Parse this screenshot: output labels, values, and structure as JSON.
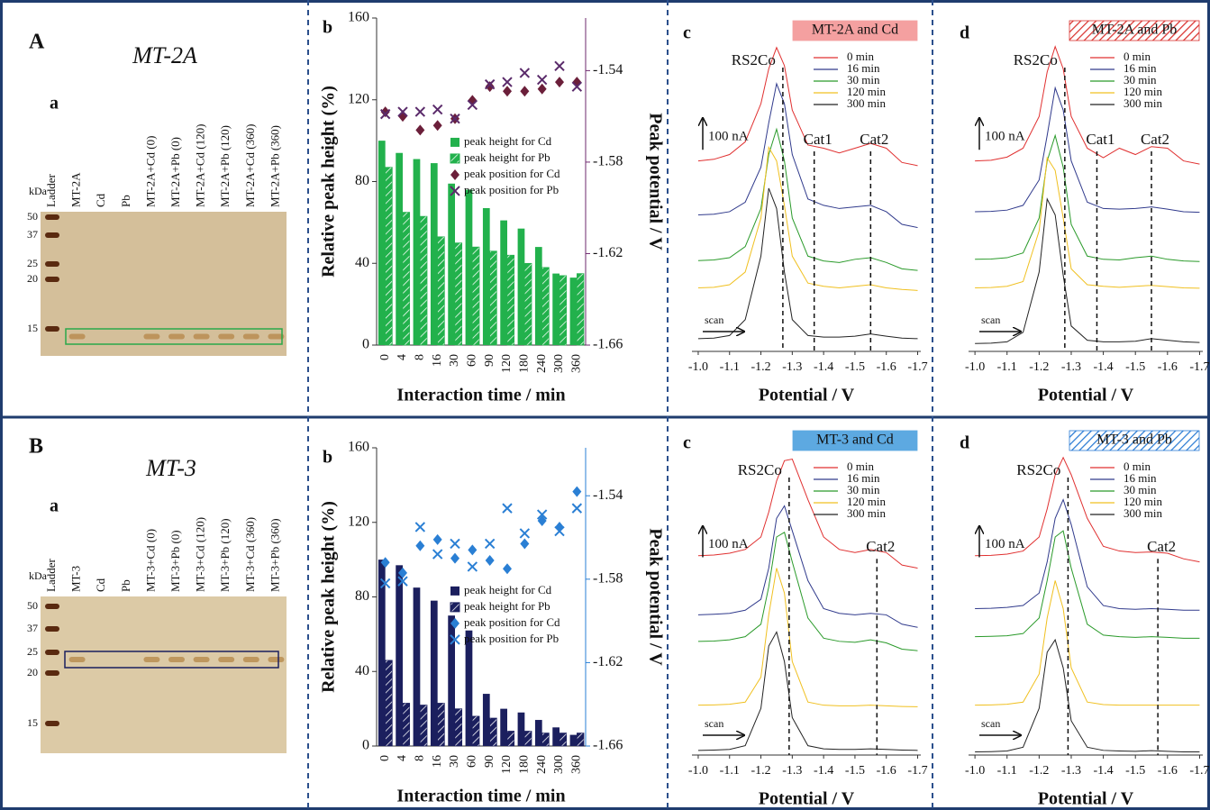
{
  "rows": [
    {
      "label": "A",
      "gel": {
        "title": "MT-2A",
        "label": "a",
        "unit": "kDa",
        "lanes": [
          "Ladder",
          "MT-2A",
          "Cd",
          "Pb",
          "MT-2A+Cd (0)",
          "MT-2A+Pb (0)",
          "MT-2A+Cd (120)",
          "MT-2A+Pb (120)",
          "MT-2A+Cd (360)",
          "MT-2A+Pb (360)"
        ],
        "markers": [
          50,
          37,
          25,
          20,
          15
        ]
      }
    },
    {
      "label": "B",
      "gel": {
        "title": "MT-3",
        "label": "a",
        "unit": "kDa",
        "lanes": [
          "Ladder",
          "MT-3",
          "Cd",
          "Pb",
          "MT-3+Cd (0)",
          "MT-3+Pb (0)",
          "MT-3+Cd (120)",
          "MT-3+Pb (120)",
          "MT-3+Cd (360)",
          "MT-3+Pb (360)"
        ],
        "markers": [
          50,
          37,
          25,
          20,
          15
        ]
      }
    }
  ],
  "chart_data": [
    {
      "type": "bar",
      "label": "b",
      "categories": [
        "0",
        "4",
        "8",
        "16",
        "30",
        "60",
        "90",
        "120",
        "180",
        "240",
        "300",
        "360"
      ],
      "series": [
        {
          "name": "peak height for Cd",
          "color": "#22b14c",
          "values": [
            100,
            94,
            91,
            89,
            79,
            76,
            67,
            61,
            57,
            48,
            35,
            33
          ]
        },
        {
          "name": "peak height for Pb",
          "color": "#22b14c",
          "hatch": true,
          "values": [
            87,
            65,
            63,
            53,
            50,
            48,
            46,
            44,
            40,
            38,
            34,
            35
          ]
        },
        {
          "name": "peak position for Cd",
          "color": "#6b1f3a",
          "marker": "diamond",
          "axis": "y2",
          "values": [
            -1.558,
            -1.56,
            -1.566,
            -1.564,
            -1.561,
            -1.553,
            -1.547,
            -1.549,
            -1.549,
            -1.548,
            -1.545,
            -1.545
          ]
        },
        {
          "name": "peak position for Pb",
          "color": "#5a2a6a",
          "marker": "x",
          "axis": "y2",
          "values": [
            -1.559,
            -1.558,
            -1.558,
            -1.557,
            -1.561,
            -1.555,
            -1.546,
            -1.545,
            -1.541,
            -1.544,
            -1.538,
            -1.547
          ]
        }
      ],
      "ylim": [
        0,
        160
      ],
      "yticks": [
        0,
        40,
        80,
        120,
        160
      ],
      "y2lim": [
        -1.66,
        -1.517
      ],
      "y2ticks": [
        -1.66,
        -1.62,
        -1.58,
        -1.54
      ],
      "y2color": "#6e2a6e",
      "y_label": "Relative  peak height (%)",
      "y2_label": "Peak potential / V",
      "x_label": "Interaction time / min",
      "legend": "center right"
    },
    {
      "type": "line",
      "label": "c",
      "box_title": "MT-2A and Cd",
      "box_color": "#f4a0a0",
      "x": [
        -1.0,
        -1.05,
        -1.1,
        -1.15,
        -1.2,
        -1.225,
        -1.25,
        -1.275,
        -1.3,
        -1.35,
        -1.4,
        -1.45,
        -1.5,
        -1.55,
        -1.6,
        -1.65,
        -1.7
      ],
      "series": [
        {
          "name": "0 min",
          "color": "#e03030",
          "values": [
            600,
            605,
            620,
            660,
            780,
            890,
            957,
            900,
            760,
            650,
            640,
            625,
            640,
            655,
            640,
            595,
            585
          ]
        },
        {
          "name": "16 min",
          "color": "#303a8c",
          "values": [
            430,
            432,
            440,
            470,
            580,
            720,
            843,
            780,
            620,
            480,
            460,
            450,
            455,
            460,
            440,
            400,
            390
          ]
        },
        {
          "name": "30 min",
          "color": "#2a9a2a",
          "values": [
            286,
            288,
            295,
            330,
            450,
            620,
            700,
            600,
            420,
            300,
            285,
            280,
            290,
            295,
            280,
            260,
            255
          ]
        },
        {
          "name": "120 min",
          "color": "#f0c020",
          "values": [
            200,
            202,
            210,
            250,
            420,
            643,
            600,
            460,
            300,
            215,
            205,
            200,
            205,
            210,
            200,
            195,
            192
          ]
        },
        {
          "name": "300 min",
          "color": "#222222",
          "values": [
            40,
            42,
            50,
            100,
            300,
            514,
            450,
            250,
            100,
            50,
            45,
            45,
            48,
            55,
            48,
            42,
            40
          ]
        }
      ],
      "xlim": [
        -0.98,
        -1.71
      ],
      "ylim": [
        0,
        1050
      ],
      "xticks": [
        {
          "value": -1,
          "label": "-1.0"
        },
        -1.1,
        -1.2,
        -1.3,
        -1.4,
        -1.5,
        -1.6,
        -1.7
      ],
      "x_label": "Potential / V",
      "peak": {
        "label": "RS2Co",
        "x": -1.27
      },
      "cats": [
        {
          "label": "Cat1",
          "x": -1.37
        },
        {
          "label": "Cat2",
          "x": -1.55
        }
      ],
      "scale_bar": {
        "label": "100 nA",
        "value": 100
      },
      "scan": "scan"
    },
    {
      "type": "line",
      "label": "d",
      "box_title": "MT-2A and Pb",
      "box_color": "#d9322f",
      "box_hatch": true,
      "x": [
        -1.0,
        -1.05,
        -1.1,
        -1.15,
        -1.2,
        -1.225,
        -1.25,
        -1.275,
        -1.3,
        -1.35,
        -1.4,
        -1.45,
        -1.5,
        -1.55,
        -1.6,
        -1.65,
        -1.7
      ],
      "series": [
        {
          "name": "0 min",
          "color": "#e03030",
          "values": [
            600,
            602,
            612,
            640,
            740,
            880,
            960,
            890,
            740,
            640,
            610,
            640,
            620,
            645,
            640,
            600,
            590
          ]
        },
        {
          "name": "16 min",
          "color": "#303a8c",
          "values": [
            440,
            441,
            445,
            460,
            540,
            680,
            830,
            760,
            600,
            470,
            450,
            448,
            450,
            455,
            448,
            440,
            438
          ]
        },
        {
          "name": "30 min",
          "color": "#2a9a2a",
          "values": [
            290,
            291,
            295,
            310,
            420,
            600,
            680,
            580,
            400,
            300,
            290,
            288,
            295,
            300,
            290,
            285,
            283
          ]
        },
        {
          "name": "120 min",
          "color": "#f0c020",
          "values": [
            200,
            201,
            205,
            220,
            380,
            610,
            570,
            420,
            260,
            210,
            205,
            202,
            205,
            208,
            204,
            200,
            199
          ]
        },
        {
          "name": "300 min",
          "color": "#222222",
          "values": [
            25,
            26,
            30,
            60,
            250,
            480,
            430,
            240,
            80,
            35,
            30,
            30,
            32,
            40,
            35,
            30,
            28
          ]
        }
      ],
      "xlim": [
        -0.98,
        -1.71
      ],
      "ylim": [
        0,
        1050
      ],
      "xticks": [
        {
          "value": -1,
          "label": "-1.0"
        },
        -1.1,
        -1.2,
        -1.3,
        -1.4,
        -1.5,
        -1.6,
        -1.7
      ],
      "x_label": "Potential / V",
      "peak": {
        "label": "RS2Co",
        "x": -1.28
      },
      "cats": [
        {
          "label": "Cat1",
          "x": -1.38
        },
        {
          "label": "Cat2",
          "x": -1.55
        }
      ],
      "scale_bar": {
        "label": "100 nA",
        "value": 100
      },
      "scan": "scan"
    },
    {
      "type": "bar",
      "label": "b",
      "categories": [
        "0",
        "4",
        "8",
        "16",
        "30",
        "60",
        "90",
        "120",
        "180",
        "240",
        "300",
        "360"
      ],
      "series": [
        {
          "name": "peak height for Cd",
          "color": "#1b1f5e",
          "values": [
            100,
            97,
            85,
            78,
            70,
            62,
            28,
            20,
            18,
            14,
            10,
            6
          ]
        },
        {
          "name": "peak height for Pb",
          "color": "#1b1f5e",
          "hatch": true,
          "values": [
            46,
            23,
            22,
            23,
            20,
            16,
            15,
            8,
            8,
            7,
            7,
            7
          ]
        },
        {
          "name": "peak position for Cd",
          "color": "#2a7fd4",
          "marker": "diamond",
          "axis": "y2",
          "values": [
            -1.572,
            -1.577,
            -1.564,
            -1.561,
            -1.57,
            -1.566,
            -1.571,
            -1.575,
            -1.563,
            -1.552,
            -1.555,
            -1.538
          ]
        },
        {
          "name": "peak position for Pb",
          "color": "#2a7fd4",
          "marker": "x",
          "axis": "y2",
          "values": [
            -1.582,
            -1.581,
            -1.555,
            -1.568,
            -1.563,
            -1.574,
            -1.563,
            -1.546,
            -1.558,
            -1.549,
            -1.557,
            -1.546
          ]
        }
      ],
      "ylim": [
        0,
        160
      ],
      "yticks": [
        0,
        40,
        80,
        120,
        160
      ],
      "y2lim": [
        -1.66,
        -1.517
      ],
      "y2ticks": [
        -1.66,
        -1.62,
        -1.58,
        -1.54
      ],
      "y2color": "#2a7fd4",
      "y_label": "Relative  peak height (%)",
      "y2_label": "Peak potential / V",
      "x_label": "Interaction time / min",
      "legend": "lower right"
    },
    {
      "type": "line",
      "label": "c",
      "box_title": "MT-3 and Cd",
      "box_color": "#5da9e1",
      "x": [
        -1.0,
        -1.05,
        -1.1,
        -1.15,
        -1.2,
        -1.225,
        -1.25,
        -1.275,
        -1.3,
        -1.35,
        -1.4,
        -1.45,
        -1.5,
        -1.55,
        -1.6,
        -1.65,
        -1.7
      ],
      "series": [
        {
          "name": "0 min",
          "color": "#e03030",
          "values": [
            640,
            642,
            648,
            660,
            700,
            780,
            880,
            945,
            950,
            820,
            700,
            660,
            650,
            660,
            650,
            610,
            600
          ]
        },
        {
          "name": "16 min",
          "color": "#303a8c",
          "values": [
            450,
            452,
            455,
            465,
            500,
            600,
            760,
            800,
            720,
            560,
            470,
            455,
            450,
            455,
            450,
            420,
            410
          ]
        },
        {
          "name": "30 min",
          "color": "#2a9a2a",
          "values": [
            365,
            366,
            370,
            380,
            420,
            540,
            700,
            715,
            620,
            440,
            375,
            365,
            362,
            370,
            360,
            340,
            335
          ]
        },
        {
          "name": "120 min",
          "color": "#f0c020",
          "values": [
            160,
            161,
            163,
            170,
            250,
            450,
            600,
            520,
            300,
            170,
            160,
            158,
            158,
            160,
            158,
            156,
            155
          ]
        },
        {
          "name": "300 min",
          "color": "#222222",
          "values": [
            15,
            16,
            18,
            30,
            150,
            350,
            395,
            300,
            120,
            30,
            20,
            18,
            18,
            20,
            18,
            16,
            15
          ]
        }
      ],
      "xlim": [
        -0.98,
        -1.71
      ],
      "ylim": [
        0,
        1050
      ],
      "xticks": [
        {
          "value": -1,
          "label": "-1.0"
        },
        -1.1,
        -1.2,
        -1.3,
        -1.4,
        -1.5,
        -1.6,
        -1.7
      ],
      "x_label": "Potential / V",
      "peak": {
        "label": "RS2Co",
        "x": -1.29
      },
      "cats": [
        {
          "label": "Cat2",
          "x": -1.57
        }
      ],
      "scale_bar": {
        "label": "100 nA",
        "value": 100
      },
      "scan": "scan"
    },
    {
      "type": "line",
      "label": "d",
      "box_title": "MT-3 and Pb",
      "box_color": "#2a7bd4",
      "box_hatch": true,
      "x": [
        -1.0,
        -1.05,
        -1.1,
        -1.15,
        -1.2,
        -1.225,
        -1.25,
        -1.275,
        -1.3,
        -1.35,
        -1.4,
        -1.45,
        -1.5,
        -1.55,
        -1.6,
        -1.65,
        -1.7
      ],
      "series": [
        {
          "name": "0 min",
          "color": "#e03030",
          "values": [
            640,
            641,
            645,
            655,
            700,
            790,
            900,
            955,
            900,
            760,
            670,
            655,
            650,
            652,
            648,
            630,
            620
          ]
        },
        {
          "name": "16 min",
          "color": "#303a8c",
          "values": [
            470,
            471,
            474,
            480,
            520,
            620,
            760,
            820,
            740,
            540,
            480,
            470,
            468,
            470,
            468,
            465,
            465
          ]
        },
        {
          "name": "30 min",
          "color": "#2a9a2a",
          "values": [
            380,
            381,
            383,
            390,
            440,
            560,
            700,
            720,
            600,
            420,
            385,
            380,
            378,
            380,
            378,
            375,
            375
          ]
        },
        {
          "name": "120 min",
          "color": "#f0c020",
          "values": [
            160,
            161,
            163,
            170,
            260,
            440,
            560,
            470,
            280,
            170,
            162,
            160,
            160,
            160,
            160,
            160,
            160
          ]
        },
        {
          "name": "300 min",
          "color": "#222222",
          "values": [
            10,
            11,
            13,
            25,
            150,
            330,
            370,
            280,
            110,
            25,
            15,
            13,
            12,
            14,
            12,
            10,
            10
          ]
        }
      ],
      "xlim": [
        -0.98,
        -1.71
      ],
      "ylim": [
        0,
        1050
      ],
      "xticks": [
        {
          "value": -1,
          "label": "-1.0"
        },
        -1.1,
        -1.2,
        -1.3,
        -1.4,
        -1.5,
        -1.6,
        -1.7
      ],
      "x_label": "Potential / V",
      "peak": {
        "label": "RS2Co",
        "x": -1.29
      },
      "cats": [
        {
          "label": "Cat2",
          "x": -1.57
        }
      ],
      "scale_bar": {
        "label": "100 nA",
        "value": 100
      },
      "scan": "scan"
    }
  ]
}
